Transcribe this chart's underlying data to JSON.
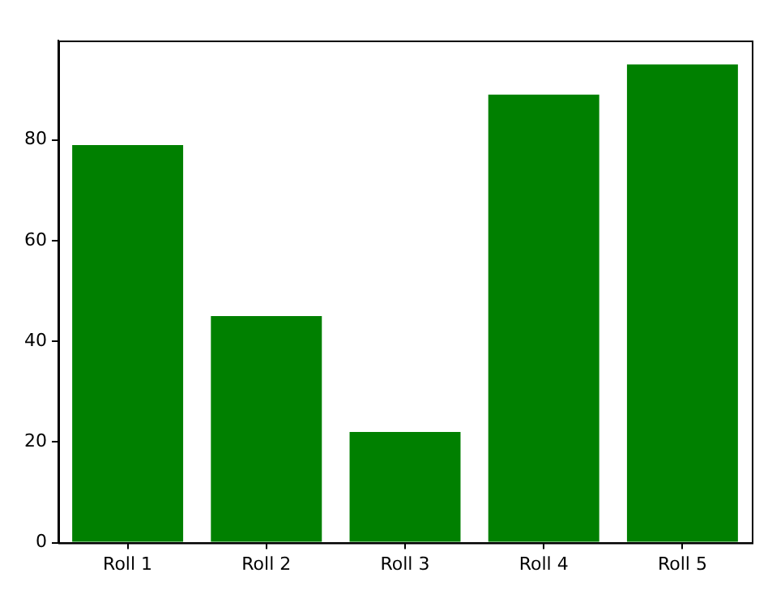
{
  "chart_data": {
    "type": "bar",
    "categories": [
      "Roll 1",
      "Roll 2",
      "Roll 3",
      "Roll 4",
      "Roll 5"
    ],
    "values": [
      79,
      45,
      22,
      89,
      95
    ],
    "color": "#008000",
    "ylim": [
      0,
      99.75
    ],
    "yticks": [
      0,
      20,
      40,
      60,
      80
    ],
    "grid": false
  }
}
